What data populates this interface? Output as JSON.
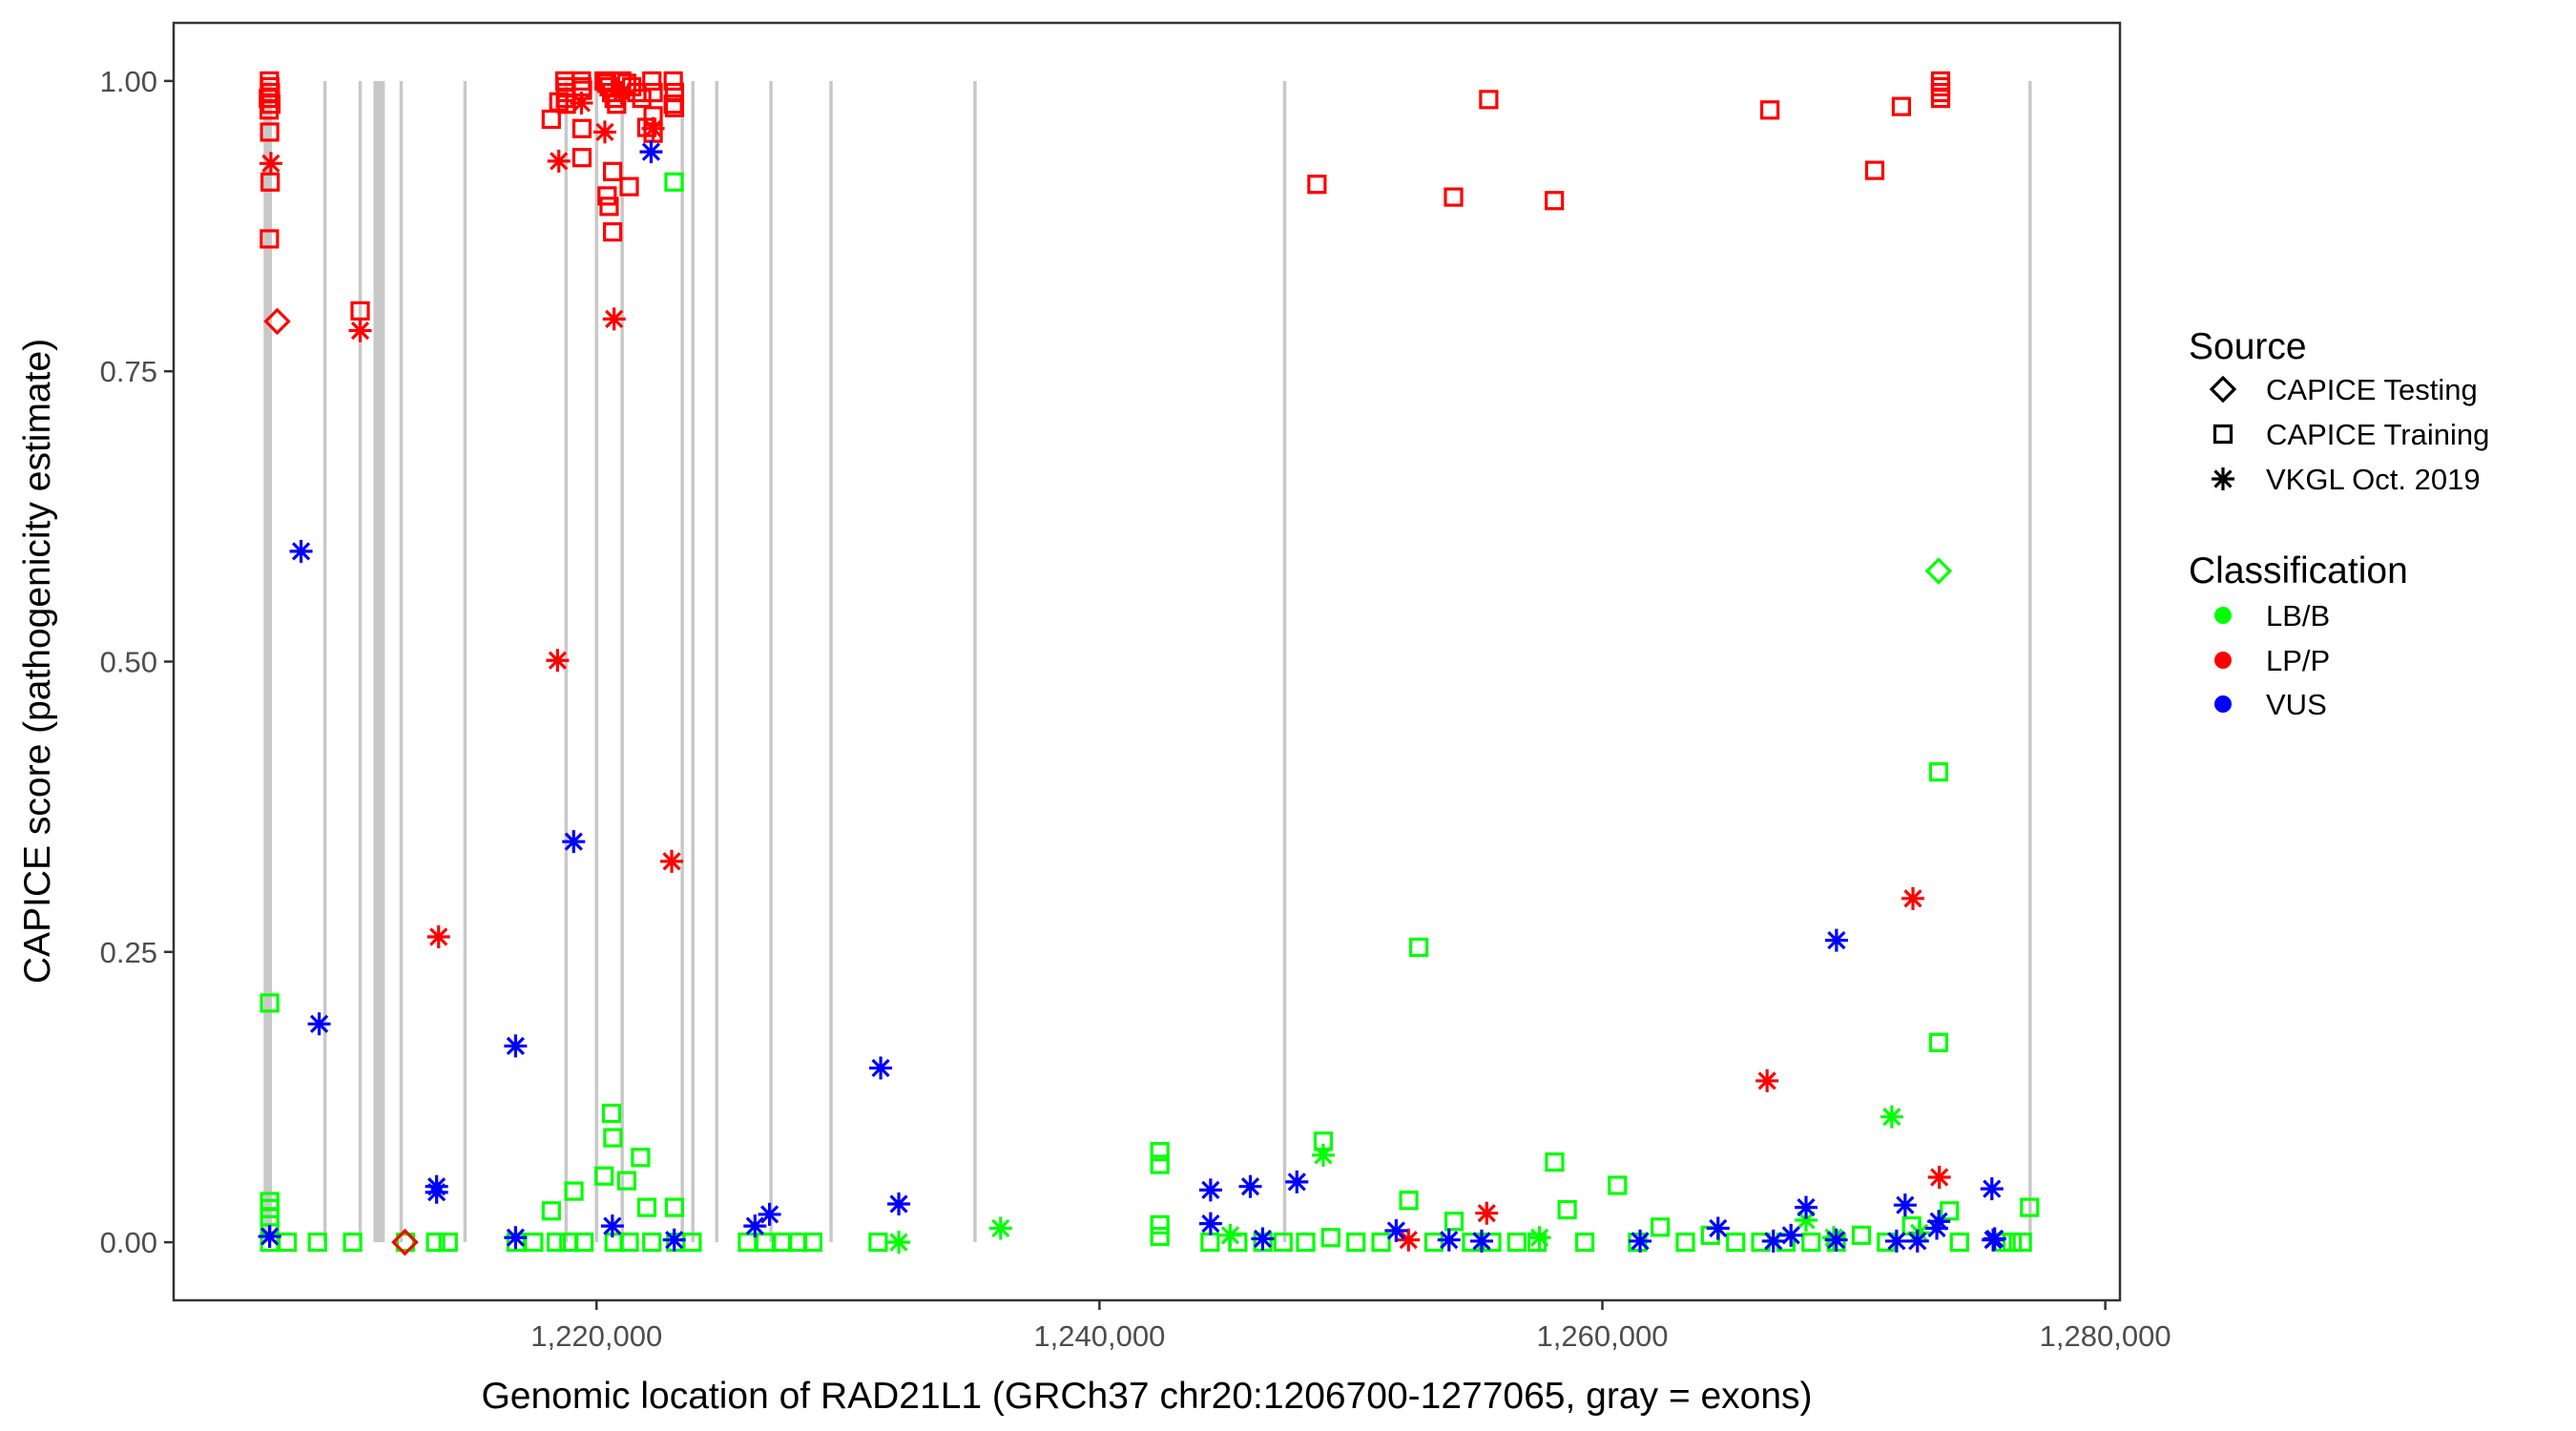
{
  "chart_data": {
    "type": "scatter",
    "title": "",
    "xlabel": "Genomic location of RAD21L1 (GRCh37 chr20:1206700-1277065, gray = exons)",
    "ylabel": "CAPICE score (pathogenicity estimate)",
    "xlim": [
      1203182,
      1280583
    ],
    "ylim": [
      -0.05,
      1.05
    ],
    "x_ticks": [
      1220000,
      1240000,
      1260000,
      1280000
    ],
    "x_tick_labels": [
      "1,220,000",
      "1,240,000",
      "1,260,000",
      "1,280,000"
    ],
    "y_ticks": [
      0,
      0.25,
      0.5,
      0.75,
      1.0
    ],
    "y_tick_labels": [
      "0.00",
      "0.25",
      "0.50",
      "0.75",
      "1.00"
    ],
    "grid": false,
    "legend_position": "right",
    "exons": [
      {
        "start": 1206760,
        "end": 1207090
      },
      {
        "start": 1209170,
        "end": 1209230
      },
      {
        "start": 1210570,
        "end": 1210630
      },
      {
        "start": 1211130,
        "end": 1211580
      },
      {
        "start": 1212200,
        "end": 1212260
      },
      {
        "start": 1214740,
        "end": 1214800
      },
      {
        "start": 1218760,
        "end": 1218820
      },
      {
        "start": 1219970,
        "end": 1220030
      },
      {
        "start": 1220990,
        "end": 1221050
      },
      {
        "start": 1223360,
        "end": 1223460
      },
      {
        "start": 1223800,
        "end": 1223860
      },
      {
        "start": 1224750,
        "end": 1224810
      },
      {
        "start": 1226910,
        "end": 1226960
      },
      {
        "start": 1229300,
        "end": 1229350
      },
      {
        "start": 1234990,
        "end": 1235110
      },
      {
        "start": 1247340,
        "end": 1247390
      },
      {
        "start": 1276980,
        "end": 1277040
      }
    ],
    "legend": {
      "source_title": "Source",
      "sources": [
        {
          "key": "testing",
          "label": "CAPICE Testing",
          "shape": "diamond"
        },
        {
          "key": "training",
          "label": "CAPICE Training",
          "shape": "square"
        },
        {
          "key": "vkgl",
          "label": "VKGL Oct. 2019",
          "shape": "asterisk"
        }
      ],
      "classification_title": "Classification",
      "classes": [
        {
          "key": "LB/B",
          "label": "LB/B",
          "color": "#00FF00"
        },
        {
          "key": "LP/P",
          "label": "LP/P",
          "color": "#FF0000"
        },
        {
          "key": "VUS",
          "label": "VUS",
          "color": "#0000FF"
        }
      ]
    },
    "series": [
      {
        "name": "LP/P - CAPICE Training",
        "class": "LP/P",
        "source": "training",
        "points": [
          [
            1206990,
            1.0
          ],
          [
            1207010,
            0.995
          ],
          [
            1207030,
            0.99
          ],
          [
            1206950,
            0.985
          ],
          [
            1207050,
            0.98
          ],
          [
            1206980,
            0.975
          ],
          [
            1207000,
            0.956
          ],
          [
            1207020,
            0.913
          ],
          [
            1206990,
            0.864
          ],
          [
            1210600,
            0.802
          ],
          [
            1218200,
            0.967
          ],
          [
            1218500,
            0.982
          ],
          [
            1218740,
            1.0
          ],
          [
            1218760,
            0.995
          ],
          [
            1218780,
            0.99
          ],
          [
            1218760,
            0.985
          ],
          [
            1218800,
            0.98
          ],
          [
            1219400,
            1.0
          ],
          [
            1219420,
            0.995
          ],
          [
            1219440,
            0.992
          ],
          [
            1219420,
            0.959
          ],
          [
            1219420,
            0.934
          ],
          [
            1220300,
            1.0
          ],
          [
            1220400,
            0.998
          ],
          [
            1220500,
            0.995
          ],
          [
            1220600,
            0.99
          ],
          [
            1220700,
            0.985
          ],
          [
            1220800,
            0.98
          ],
          [
            1221000,
            1.0
          ],
          [
            1221200,
            0.998
          ],
          [
            1221400,
            0.995
          ],
          [
            1221600,
            0.99
          ],
          [
            1221800,
            0.985
          ],
          [
            1222000,
            0.96
          ],
          [
            1220640,
            0.922
          ],
          [
            1221300,
            0.909
          ],
          [
            1220420,
            0.901
          ],
          [
            1220500,
            0.892
          ],
          [
            1220640,
            0.87
          ],
          [
            1222200,
            1.0
          ],
          [
            1222250,
            0.99
          ],
          [
            1222250,
            0.97
          ],
          [
            1222250,
            0.955
          ],
          [
            1223050,
            1.0
          ],
          [
            1223100,
            0.99
          ],
          [
            1223050,
            0.98
          ],
          [
            1223100,
            0.977
          ],
          [
            1248650,
            0.911
          ],
          [
            1254080,
            0.9
          ],
          [
            1255480,
            0.984
          ],
          [
            1258090,
            0.897
          ],
          [
            1266660,
            0.975
          ],
          [
            1270830,
            0.923
          ],
          [
            1271890,
            0.978
          ],
          [
            1273450,
            1.0
          ],
          [
            1273450,
            0.995
          ],
          [
            1273450,
            0.99
          ],
          [
            1273450,
            0.985
          ]
        ]
      },
      {
        "name": "LP/P - VKGL Oct. 2019",
        "class": "LP/P",
        "source": "vkgl",
        "points": [
          [
            1207050,
            0.929
          ],
          [
            1210600,
            0.785
          ],
          [
            1213720,
            0.263
          ],
          [
            1218450,
            0.501
          ],
          [
            1218500,
            0.931
          ],
          [
            1219400,
            0.981
          ],
          [
            1220330,
            0.956
          ],
          [
            1220700,
            0.795
          ],
          [
            1222250,
            0.959
          ],
          [
            1221000,
            0.99
          ],
          [
            1222990,
            0.328
          ],
          [
            1252290,
            0.002
          ],
          [
            1255400,
            0.025
          ],
          [
            1266550,
            0.139
          ],
          [
            1272350,
            0.296
          ],
          [
            1273400,
            0.056
          ]
        ]
      },
      {
        "name": "LP/P - CAPICE Testing",
        "class": "LP/P",
        "source": "testing",
        "points": [
          [
            1207300,
            0.793
          ],
          [
            1212380,
            0.0
          ]
        ]
      },
      {
        "name": "VUS - VKGL Oct. 2019",
        "class": "VUS",
        "source": "vkgl",
        "points": [
          [
            1207000,
            0.005
          ],
          [
            1208250,
            0.595
          ],
          [
            1208970,
            0.188
          ],
          [
            1213640,
            0.048
          ],
          [
            1213640,
            0.043
          ],
          [
            1216780,
            0.169
          ],
          [
            1216780,
            0.004
          ],
          [
            1219090,
            0.345
          ],
          [
            1220630,
            0.014
          ],
          [
            1222170,
            0.939
          ],
          [
            1223090,
            0.002
          ],
          [
            1226300,
            0.014
          ],
          [
            1226880,
            0.024
          ],
          [
            1231300,
            0.15
          ],
          [
            1232020,
            0.033
          ],
          [
            1244420,
            0.045
          ],
          [
            1244420,
            0.016
          ],
          [
            1246000,
            0.048
          ],
          [
            1246490,
            0.003
          ],
          [
            1247850,
            0.052
          ],
          [
            1251800,
            0.01
          ],
          [
            1253900,
            0.002
          ],
          [
            1255200,
            0.001
          ],
          [
            1261500,
            0.001
          ],
          [
            1264600,
            0.012
          ],
          [
            1266800,
            0.001
          ],
          [
            1267500,
            0.006
          ],
          [
            1268100,
            0.03
          ],
          [
            1269310,
            0.26
          ],
          [
            1269300,
            0.002
          ],
          [
            1271700,
            0.001
          ],
          [
            1272040,
            0.032
          ],
          [
            1272530,
            0.001
          ],
          [
            1273380,
            0.018
          ],
          [
            1273300,
            0.012
          ],
          [
            1275490,
            0.046
          ],
          [
            1275540,
            0.002
          ],
          [
            1275600,
            0.003
          ]
        ]
      },
      {
        "name": "LB/B - CAPICE Testing",
        "class": "LB/B",
        "source": "testing",
        "points": [
          [
            1273370,
            0.578
          ],
          [
            1212380,
            0.0
          ]
        ]
      },
      {
        "name": "LB/B - VKGL Oct. 2019",
        "class": "LB/B",
        "source": "vkgl",
        "points": [
          [
            1232020,
            0.0
          ],
          [
            1236070,
            0.012
          ],
          [
            1245200,
            0.006
          ],
          [
            1248900,
            0.075
          ],
          [
            1257500,
            0.004
          ],
          [
            1268100,
            0.019
          ],
          [
            1269200,
            0.004
          ],
          [
            1271510,
            0.108
          ],
          [
            1272600,
            0.008
          ]
        ]
      },
      {
        "name": "LB/B - CAPICE Training",
        "class": "LB/B",
        "source": "training",
        "points": [
          [
            1207000,
            0.206
          ],
          [
            1207000,
            0.035
          ],
          [
            1207000,
            0.029
          ],
          [
            1207000,
            0.022
          ],
          [
            1207000,
            0.015
          ],
          [
            1207000,
            0.0
          ],
          [
            1207700,
            0.0
          ],
          [
            1208900,
            0.0
          ],
          [
            1210300,
            0.0
          ],
          [
            1212400,
            0.0
          ],
          [
            1213600,
            0.0
          ],
          [
            1214100,
            0.0
          ],
          [
            1216800,
            0.0
          ],
          [
            1217500,
            0.0
          ],
          [
            1218200,
            0.027
          ],
          [
            1218400,
            0.0
          ],
          [
            1218900,
            0.0
          ],
          [
            1219100,
            0.044
          ],
          [
            1219500,
            0.0
          ],
          [
            1220300,
            0.057
          ],
          [
            1220600,
            0.111
          ],
          [
            1220650,
            0.09
          ],
          [
            1220700,
            0.0
          ],
          [
            1221200,
            0.053
          ],
          [
            1221300,
            0.0
          ],
          [
            1221750,
            0.073
          ],
          [
            1222000,
            0.03
          ],
          [
            1222200,
            0.0
          ],
          [
            1223080,
            0.913
          ],
          [
            1223100,
            0.03
          ],
          [
            1223150,
            0.0
          ],
          [
            1223800,
            0.0
          ],
          [
            1226000,
            0.0
          ],
          [
            1226700,
            0.0
          ],
          [
            1227400,
            0.0
          ],
          [
            1228000,
            0.0
          ],
          [
            1228600,
            0.0
          ],
          [
            1231200,
            0.0
          ],
          [
            1242400,
            0.078
          ],
          [
            1242400,
            0.067
          ],
          [
            1242400,
            0.015
          ],
          [
            1242400,
            0.005
          ],
          [
            1244400,
            0.0
          ],
          [
            1245500,
            0.0
          ],
          [
            1246500,
            0.0
          ],
          [
            1247300,
            0.0
          ],
          [
            1248200,
            0.0
          ],
          [
            1248900,
            0.087
          ],
          [
            1249200,
            0.004
          ],
          [
            1250200,
            0.0
          ],
          [
            1251200,
            0.0
          ],
          [
            1252300,
            0.036
          ],
          [
            1252700,
            0.254
          ],
          [
            1253300,
            0.0
          ],
          [
            1254100,
            0.018
          ],
          [
            1254800,
            0.0
          ],
          [
            1255600,
            0.0
          ],
          [
            1256600,
            0.0
          ],
          [
            1257400,
            0.0
          ],
          [
            1258100,
            0.069
          ],
          [
            1258600,
            0.028
          ],
          [
            1259300,
            0.0
          ],
          [
            1260600,
            0.049
          ],
          [
            1261400,
            0.0
          ],
          [
            1262300,
            0.013
          ],
          [
            1263300,
            0.0
          ],
          [
            1264300,
            0.006
          ],
          [
            1265300,
            0.0
          ],
          [
            1266300,
            0.0
          ],
          [
            1267300,
            0.0
          ],
          [
            1268300,
            0.0
          ],
          [
            1269300,
            0.0
          ],
          [
            1270300,
            0.006
          ],
          [
            1271300,
            0.0
          ],
          [
            1272300,
            0.014
          ],
          [
            1273370,
            0.405
          ],
          [
            1273370,
            0.172
          ],
          [
            1273800,
            0.027
          ],
          [
            1274200,
            0.0
          ],
          [
            1275900,
            0.0
          ],
          [
            1276300,
            0.0
          ],
          [
            1276700,
            0.0
          ],
          [
            1276990,
            0.03
          ]
        ]
      }
    ]
  }
}
